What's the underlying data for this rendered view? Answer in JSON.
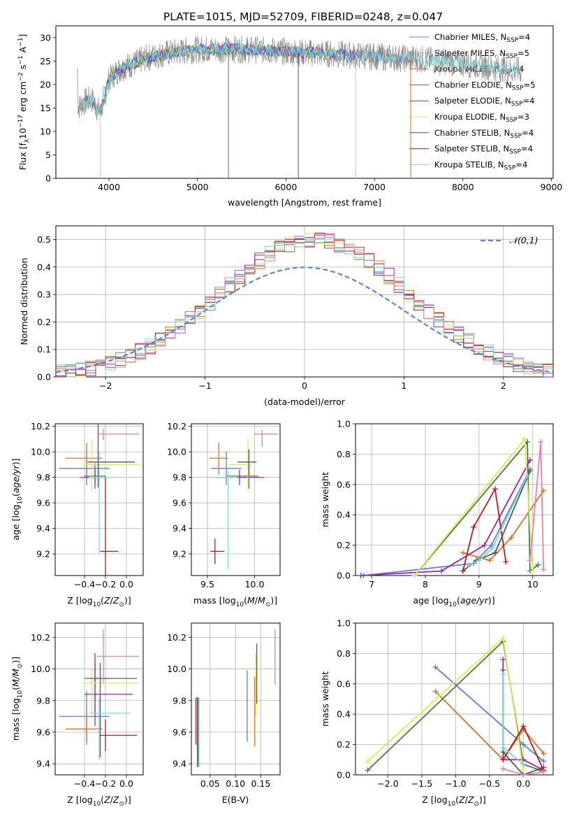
{
  "figure_title": "PLATE=1015, MJD=52709, FIBERID=0248, z=0.047",
  "colors": {
    "Chabrier MILES": "#5b7fd6",
    "Salpeter MILES": "#c0c0c0",
    "Kroupa MILES": "#e07020",
    "Chabrier ELODIE": "#4a7a3f",
    "Salpeter ELODIE": "#9a22b8",
    "Kroupa ELODIE": "#d6ee50",
    "Chabrier STELIB": "#555555",
    "Salpeter STELIB": "#b81b1b",
    "Kroupa STELIB": "#7fd8d8",
    "pink": "#e580a8",
    "gauss": "#5b86cf"
  },
  "chart_data": [
    {
      "id": "spectrum",
      "type": "line",
      "xlabel": "wavelength [Angstrom, rest frame]",
      "ylabel_parts": [
        "Flux [f",
        "λ",
        "10",
        "−17",
        " erg cm",
        "−2",
        " s",
        "−1",
        " A",
        "−1",
        "]"
      ],
      "xlim": [
        3400,
        9020
      ],
      "ylim": [
        0,
        32.5
      ],
      "xticks": [
        4000,
        5000,
        6000,
        7000,
        8000,
        9000
      ],
      "yticks": [
        0,
        5,
        10,
        15,
        20,
        25,
        30
      ],
      "legend": [
        {
          "imf": "Chabrier",
          "lib": "MILES",
          "n": "4"
        },
        {
          "imf": "Salpeter",
          "lib": "MILES",
          "n": "5"
        },
        {
          "imf": "Kroupa",
          "lib": "MILES",
          "n": "4"
        },
        {
          "imf": "Chabrier",
          "lib": "ELODIE",
          "n": "5"
        },
        {
          "imf": "Salpeter",
          "lib": "ELODIE",
          "n": "4"
        },
        {
          "imf": "Kroupa",
          "lib": "ELODIE",
          "n": "3"
        },
        {
          "imf": "Chabrier",
          "lib": "STELIB",
          "n": "4"
        },
        {
          "imf": "Salpeter",
          "lib": "STELIB",
          "n": "4"
        },
        {
          "imf": "Kroupa",
          "lib": "STELIB",
          "n": "4"
        }
      ],
      "legend_placement": "top-right",
      "grid": false,
      "continuum": {
        "x": [
          3650,
          3700,
          3800,
          3900,
          4000,
          4100,
          4200,
          4300,
          4400,
          4600,
          4800,
          5000,
          5200,
          5500,
          5800,
          6000,
          6300,
          6600,
          7000,
          7300,
          7500,
          7700,
          8000,
          8200,
          8400,
          8600
        ],
        "y": [
          15,
          16,
          17,
          14,
          21,
          23,
          24,
          24.5,
          25.5,
          26.5,
          27,
          27.5,
          27.5,
          27.5,
          27.3,
          27,
          26.7,
          26.4,
          26,
          25.6,
          25.5,
          25,
          24.5,
          24,
          23.5,
          23
        ]
      },
      "ranges": {
        "observed": [
          3640,
          8660
        ],
        "MILES": [
          3650,
          7410
        ],
        "ELODIE": [
          3900,
          6790
        ],
        "STELIB": [
          3650,
          8620
        ]
      }
    },
    {
      "id": "residuals",
      "type": "histogram",
      "xlabel": "(data-model)/error",
      "ylabel": "Normed distribution",
      "xlim": [
        -2.5,
        2.5
      ],
      "ylim": [
        0,
        0.55
      ],
      "xticks": [
        -2,
        -1,
        0,
        1,
        2
      ],
      "yticks": [
        0.0,
        0.1,
        0.2,
        0.3,
        0.4,
        0.5
      ],
      "grid": true,
      "legend": [
        "N(0,1)"
      ],
      "legend_placement": "top-right",
      "bin_width": 0.1,
      "peak": 0.5,
      "gaussian": {
        "mu": 0,
        "sigma": 1
      }
    },
    {
      "id": "age-vs-Z",
      "type": "errorbar",
      "xlabel_parts": [
        "Z [log",
        "10",
        "(Z/Z",
        "⊙",
        ")]"
      ],
      "ylabel_parts": [
        "age  [log",
        "10",
        "(age/yr)]"
      ],
      "xlim": [
        -0.68,
        0.16
      ],
      "ylim": [
        9.03,
        10.22
      ],
      "xticks": [
        -0.4,
        -0.2,
        0.0
      ],
      "yticks": [
        9.2,
        9.4,
        9.6,
        9.8,
        10.0,
        10.2
      ],
      "grid": true,
      "points": [
        {
          "c": "Chabrier MILES",
          "x": -0.38,
          "y": 9.87,
          "ex": [
            0.26,
            0.22
          ],
          "ey": [
            0.13,
            0.13
          ]
        },
        {
          "c": "Kroupa MILES",
          "x": -0.38,
          "y": 9.95,
          "ex": [
            0.2,
            0.15
          ],
          "ey": [
            0.13,
            0.12
          ]
        },
        {
          "c": "Chabrier ELODIE",
          "x": -0.3,
          "y": 9.81,
          "ex": [
            0.1,
            0.1
          ],
          "ey": [
            0.1,
            0.1
          ]
        },
        {
          "c": "Salpeter ELODIE",
          "x": -0.3,
          "y": 9.8,
          "ex": [
            0.14,
            0.13
          ],
          "ey": [
            0.06,
            0.06
          ]
        },
        {
          "c": "Kroupa ELODIE",
          "x": -0.33,
          "y": 9.9,
          "ex": [
            0.08,
            0.46
          ],
          "ey": [
            0.2,
            0.2
          ]
        },
        {
          "c": "Chabrier STELIB",
          "x": -0.27,
          "y": 9.92,
          "ex": [
            0.1,
            0.35
          ],
          "ey": [
            0.2,
            0.84
          ]
        },
        {
          "c": "Salpeter STELIB",
          "x": -0.2,
          "y": 9.22,
          "ex": [
            0.05,
            0.12
          ],
          "ey": [
            0.58,
            0.59
          ]
        },
        {
          "c": "Kroupa STELIB",
          "x": -0.26,
          "y": 9.8,
          "ex": [
            0.1,
            0.15
          ],
          "ey": [
            0.6,
            0.2
          ]
        },
        {
          "c": "pink",
          "x": -0.22,
          "y": 10.14,
          "ex": [
            0.06,
            0.34
          ],
          "ey": [
            0.05,
            0.04
          ]
        }
      ]
    },
    {
      "id": "age-vs-mass",
      "type": "errorbar",
      "xlabel_parts": [
        "mass [log",
        "10",
        "(M/M",
        "⊙",
        ")]"
      ],
      "ylabel_parts": [],
      "xlim": [
        9.33,
        10.27
      ],
      "ylim": [
        9.03,
        10.22
      ],
      "xticks": [
        9.5,
        10.0
      ],
      "yticks": [
        9.2,
        9.4,
        9.6,
        9.8,
        10.0,
        10.2
      ],
      "grid": true,
      "points": [
        {
          "c": "Chabrier MILES",
          "x": 9.7,
          "y": 9.87,
          "ex": [
            0.16,
            0.16
          ],
          "ey": [
            0.13,
            0.13
          ]
        },
        {
          "c": "Kroupa MILES",
          "x": 9.62,
          "y": 9.95,
          "ex": [
            0.1,
            0.1
          ],
          "ey": [
            0.13,
            0.12
          ]
        },
        {
          "c": "Chabrier ELODIE",
          "x": 9.94,
          "y": 9.81,
          "ex": [
            0.24,
            0.1
          ],
          "ey": [
            0.1,
            0.1
          ]
        },
        {
          "c": "Salpeter ELODIE",
          "x": 9.84,
          "y": 9.8,
          "ex": [
            0.25,
            0.26
          ],
          "ey": [
            0.06,
            0.06
          ]
        },
        {
          "c": "Kroupa ELODIE",
          "x": 9.93,
          "y": 9.9,
          "ex": [
            0.2,
            0.04
          ],
          "ey": [
            0.2,
            0.2
          ]
        },
        {
          "c": "Chabrier STELIB",
          "x": 9.94,
          "y": 9.92,
          "ex": [
            0.12,
            0.08
          ],
          "ey": [
            0.1,
            0.1
          ]
        },
        {
          "c": "Salpeter STELIB",
          "x": 9.58,
          "y": 9.22,
          "ex": [
            0.05,
            0.1
          ],
          "ey": [
            0.1,
            0.1
          ]
        },
        {
          "c": "Kroupa STELIB",
          "x": 9.72,
          "y": 9.8,
          "ex": [
            0.2,
            0.1
          ],
          "ey": [
            0.72,
            0.05
          ]
        },
        {
          "c": "pink",
          "x": 10.08,
          "y": 10.14,
          "ex": [
            0.08,
            0.17
          ],
          "ey": [
            0.1,
            0.03
          ]
        }
      ]
    },
    {
      "id": "mass-weight-vs-age",
      "type": "line",
      "xlabel_parts": [
        "age  [log",
        "10",
        "(age/yr)]"
      ],
      "ylabel": "mass weight",
      "xlim": [
        6.7,
        10.38
      ],
      "ylim": [
        0,
        1
      ],
      "xticks": [
        7,
        8,
        9,
        10
      ],
      "yticks": [
        0.0,
        0.2,
        0.4,
        0.6,
        0.8,
        1.0
      ],
      "grid": true,
      "series": [
        {
          "c": "Chabrier MILES",
          "x": [
            6.85,
            8.9,
            9.23,
            9.95
          ],
          "y": [
            0.0,
            0.08,
            0.2,
            0.7
          ]
        },
        {
          "c": "Kroupa MILES",
          "x": [
            8.7,
            9.2,
            9.6,
            10.2
          ],
          "y": [
            0.15,
            0.1,
            0.25,
            0.56
          ]
        },
        {
          "c": "Chabrier ELODIE",
          "x": [
            7.8,
            9.9,
            9.95,
            10.1
          ],
          "y": [
            0.0,
            0.88,
            0.03,
            0.07
          ]
        },
        {
          "c": "Salpeter ELODIE",
          "x": [
            6.8,
            8.3,
            9.1,
            9.95
          ],
          "y": [
            0.0,
            0.03,
            0.2,
            0.76
          ]
        },
        {
          "c": "Kroupa ELODIE",
          "x": [
            7.8,
            9.85,
            10.0
          ],
          "y": [
            0.0,
            0.9,
            0.03
          ]
        },
        {
          "c": "Chabrier STELIB",
          "x": [
            8.7,
            8.95,
            9.3,
            9.95
          ],
          "y": [
            0.03,
            0.1,
            0.15,
            0.69
          ]
        },
        {
          "c": "Salpeter STELIB",
          "x": [
            8.7,
            8.9,
            9.3,
            9.5
          ],
          "y": [
            0.03,
            0.32,
            0.57,
            0.09
          ]
        },
        {
          "c": "Kroupa STELIB",
          "x": [
            8.8,
            9.0,
            9.25,
            9.9
          ],
          "y": [
            0.07,
            0.1,
            0.18,
            0.66
          ]
        },
        {
          "c": "pink",
          "x": [
            9.95,
            10.15,
            10.2
          ],
          "y": [
            0.1,
            0.88,
            0.04
          ]
        }
      ]
    },
    {
      "id": "mass-vs-Z",
      "type": "errorbar",
      "xlabel_parts": [
        "Z [log",
        "10",
        "(Z/Z",
        "⊙",
        ")]"
      ],
      "ylabel_parts": [
        "mass [log",
        "10",
        "(M/M",
        "⊙",
        ")]"
      ],
      "xlim": [
        -0.68,
        0.16
      ],
      "ylim": [
        9.33,
        10.29
      ],
      "xticks": [
        -0.4,
        -0.2,
        0.0
      ],
      "yticks": [
        9.4,
        9.6,
        9.8,
        10.0,
        10.2
      ],
      "grid": true,
      "points": [
        {
          "c": "Chabrier MILES",
          "x": -0.38,
          "y": 9.7,
          "ex": [
            0.26,
            0.22
          ],
          "ey": [
            0.16,
            0.16
          ]
        },
        {
          "c": "Kroupa MILES",
          "x": -0.38,
          "y": 9.62,
          "ex": [
            0.2,
            0.15
          ],
          "ey": [
            0.1,
            0.1
          ]
        },
        {
          "c": "Chabrier ELODIE",
          "x": -0.3,
          "y": 9.94,
          "ex": [
            0.1,
            0.4
          ],
          "ey": [
            0.22,
            0.1
          ]
        },
        {
          "c": "Salpeter ELODIE",
          "x": -0.3,
          "y": 9.84,
          "ex": [
            0.1,
            0.36
          ],
          "ey": [
            0.2,
            0.26
          ]
        },
        {
          "c": "Kroupa ELODIE",
          "x": -0.33,
          "y": 9.91,
          "ex": [
            0.08,
            0.44
          ],
          "ey": [
            0.2,
            0.1
          ]
        },
        {
          "c": "Chabrier STELIB",
          "x": -0.25,
          "y": 9.94,
          "ex": [
            0.1,
            0.1
          ],
          "ey": [
            0.5,
            0.1
          ]
        },
        {
          "c": "Salpeter STELIB",
          "x": -0.2,
          "y": 9.58,
          "ex": [
            0.05,
            0.3
          ],
          "ey": [
            0.1,
            0.1
          ]
        },
        {
          "c": "Kroupa STELIB",
          "x": -0.26,
          "y": 9.72,
          "ex": [
            0.08,
            0.3
          ],
          "ey": [
            0.3,
            0.1
          ]
        },
        {
          "c": "pink",
          "x": -0.22,
          "y": 10.08,
          "ex": [
            0.06,
            0.34
          ],
          "ey": [
            0.17,
            0.17
          ]
        }
      ]
    },
    {
      "id": "mass-vs-ebv",
      "type": "errorbar",
      "xlabel": "E(B-V)",
      "ylabel_parts": [],
      "xlim": [
        0.013,
        0.188
      ],
      "ylim": [
        9.33,
        10.29
      ],
      "xticks": [
        0.05,
        0.1,
        0.15
      ],
      "yticks": [
        9.4,
        9.6,
        9.8,
        10.0,
        10.2
      ],
      "grid": true,
      "points": [
        {
          "c": "Chabrier MILES",
          "x": 0.123,
          "y": 9.77,
          "ex": [
            0,
            0
          ],
          "ey": [
            0.23,
            0.22
          ]
        },
        {
          "c": "Kroupa MILES",
          "x": 0.138,
          "y": 9.73,
          "ex": [
            0,
            0
          ],
          "ey": [
            0.22,
            0.22
          ]
        },
        {
          "c": "Chabrier ELODIE",
          "x": 0.027,
          "y": 9.6,
          "ex": [
            0,
            0
          ],
          "ey": [
            0.22,
            0.22
          ]
        },
        {
          "c": "Kroupa ELODIE",
          "x": 0.14,
          "y": 9.85,
          "ex": [
            0,
            0
          ],
          "ey": [
            0.15,
            0.25
          ]
        },
        {
          "c": "Salpeter ELODIE",
          "x": 0.142,
          "y": 9.93,
          "ex": [
            0,
            0
          ],
          "ey": [
            0.15,
            0.23
          ]
        },
        {
          "c": "Chabrier STELIB",
          "x": 0.025,
          "y": 9.6,
          "ex": [
            0,
            0
          ],
          "ey": [
            0.22,
            0.22
          ]
        },
        {
          "c": "Salpeter STELIB",
          "x": 0.022,
          "y": 9.67,
          "ex": [
            0,
            0
          ],
          "ey": [
            0.15,
            0.15
          ]
        },
        {
          "c": "Kroupa STELIB",
          "x": 0.028,
          "y": 9.6,
          "ex": [
            0,
            0
          ],
          "ey": [
            0.22,
            0.22
          ]
        },
        {
          "c": "pink",
          "x": 0.178,
          "y": 10.07,
          "ex": [
            0,
            0
          ],
          "ey": [
            0.17,
            0.18
          ]
        }
      ]
    },
    {
      "id": "mass-weight-vs-Z",
      "type": "line",
      "xlabel_parts": [
        "Z [log",
        "10",
        "(Z/Z",
        "⊙",
        ")]"
      ],
      "ylabel": "mass weight",
      "xlim": [
        -2.48,
        0.44
      ],
      "ylim": [
        0,
        1
      ],
      "xticks": [
        -2.0,
        -1.5,
        -1.0,
        -0.5,
        0.0
      ],
      "yticks": [
        0.0,
        0.2,
        0.4,
        0.6,
        0.8,
        1.0
      ],
      "grid": true,
      "series": [
        {
          "c": "Chabrier MILES",
          "x": [
            -1.3,
            0.0,
            0.3
          ],
          "y": [
            0.71,
            0.2,
            0.09
          ]
        },
        {
          "c": "Kroupa MILES",
          "x": [
            -1.3,
            -0.3,
            0.0,
            0.3
          ],
          "y": [
            0.55,
            0.1,
            0.3,
            0.14
          ]
        },
        {
          "c": "Chabrier ELODIE",
          "x": [
            -2.3,
            -0.3,
            0.0,
            0.25
          ],
          "y": [
            0.03,
            0.88,
            0.07,
            0.03
          ]
        },
        {
          "c": "Salpeter ELODIE",
          "x": [
            -0.3,
            -0.3,
            0.0,
            0.3
          ],
          "y": [
            0.76,
            0.1,
            0.1,
            0.03
          ]
        },
        {
          "c": "Kroupa ELODIE",
          "x": [
            -2.3,
            -0.3,
            0.0
          ],
          "y": [
            0.09,
            0.9,
            0.03
          ]
        },
        {
          "c": "Chabrier STELIB",
          "x": [
            -0.3,
            -0.3,
            0.0,
            0.3
          ],
          "y": [
            0.69,
            0.15,
            0.0,
            0.05
          ]
        },
        {
          "c": "Salpeter STELIB",
          "x": [
            -0.3,
            0.0,
            0.3
          ],
          "y": [
            0.1,
            0.32,
            0.03
          ]
        },
        {
          "c": "Kroupa STELIB",
          "x": [
            -0.3,
            -0.3,
            0.0
          ],
          "y": [
            0.66,
            0.18,
            0.07
          ]
        },
        {
          "c": "pink",
          "x": [
            -0.3,
            0.0,
            0.3
          ],
          "y": [
            0.04,
            0.0,
            0.02
          ]
        }
      ]
    }
  ]
}
